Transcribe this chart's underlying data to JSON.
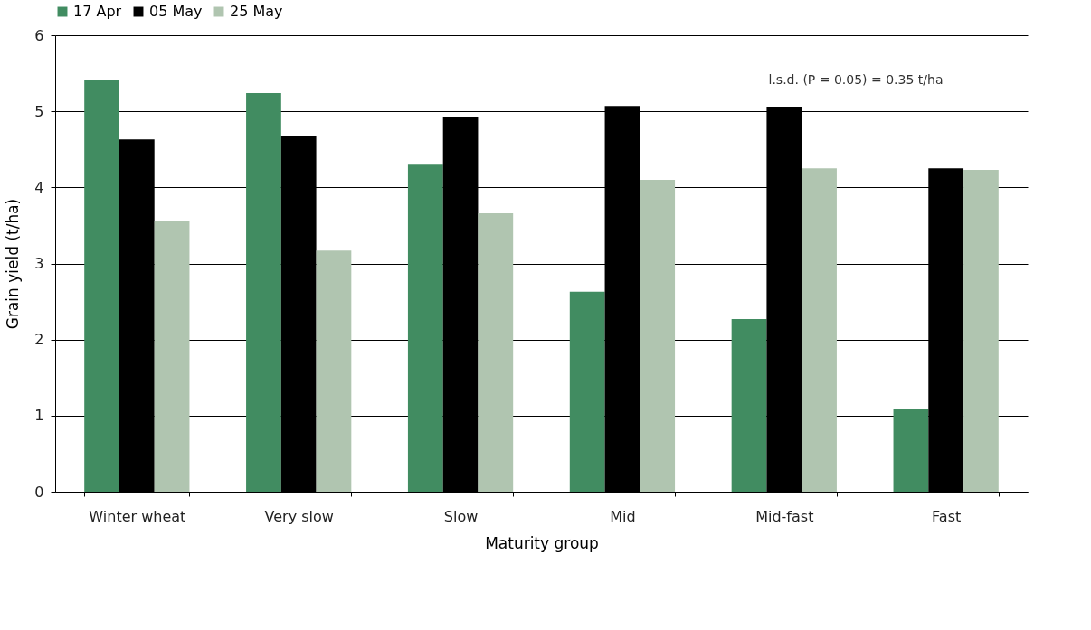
{
  "chart_data": {
    "type": "bar",
    "xlabel": "Maturity group",
    "ylabel": "Grain yield (t/ha)",
    "categories": [
      "Winter wheat",
      "Very slow",
      "Slow",
      "Mid",
      "Mid-fast",
      "Fast"
    ],
    "series": [
      {
        "name": "17 Apr",
        "color": "#418c61",
        "values": [
          5.41,
          5.24,
          4.31,
          2.63,
          2.27,
          1.09
        ]
      },
      {
        "name": "05 May",
        "color": "#000000",
        "values": [
          4.63,
          4.67,
          4.93,
          5.07,
          5.06,
          4.25
        ]
      },
      {
        "name": "25 May",
        "color": "#b0c5b0",
        "values": [
          3.56,
          3.17,
          3.66,
          4.1,
          4.25,
          4.23
        ]
      }
    ],
    "ylim": [
      0,
      6
    ],
    "yticks": [
      0,
      1,
      2,
      3,
      4,
      5,
      6
    ],
    "grid": "y",
    "legend": "top",
    "annotations": [
      "l.s.d. (P = 0.05) = 0.35 t/ha"
    ]
  }
}
